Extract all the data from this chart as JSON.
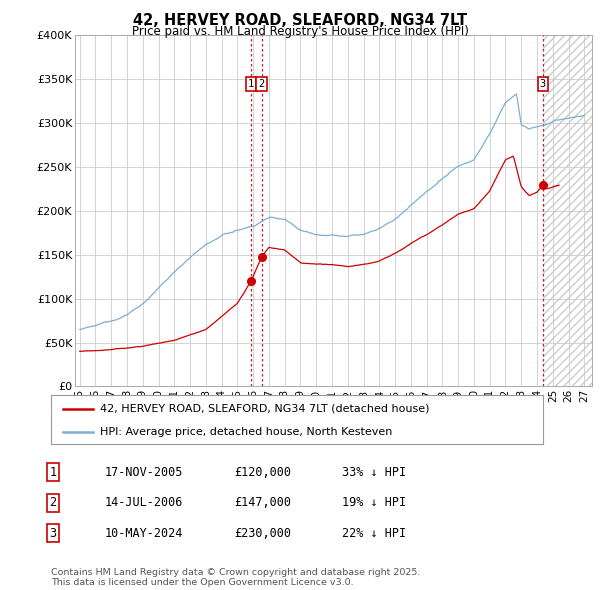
{
  "title": "42, HERVEY ROAD, SLEAFORD, NG34 7LT",
  "subtitle": "Price paid vs. HM Land Registry's House Price Index (HPI)",
  "background_color": "#ffffff",
  "plot_bg_color": "#ffffff",
  "grid_color": "#cccccc",
  "hpi_line_color": "#7bafd4",
  "price_line_color": "#cc0000",
  "dashed_line_color": "#cc0000",
  "ylim": [
    0,
    400000
  ],
  "yticks": [
    0,
    50000,
    100000,
    150000,
    200000,
    250000,
    300000,
    350000,
    400000
  ],
  "ytick_labels": [
    "£0",
    "£50K",
    "£100K",
    "£150K",
    "£200K",
    "£250K",
    "£300K",
    "£350K",
    "£400K"
  ],
  "xlim_start": 1994.7,
  "xlim_end": 2027.5,
  "xtick_years": [
    1995,
    1996,
    1997,
    1998,
    1999,
    2000,
    2001,
    2002,
    2003,
    2004,
    2005,
    2006,
    2007,
    2008,
    2009,
    2010,
    2011,
    2012,
    2013,
    2014,
    2015,
    2016,
    2017,
    2018,
    2019,
    2020,
    2021,
    2022,
    2023,
    2024,
    2025,
    2026,
    2027
  ],
  "sale1_x": 2005.88,
  "sale1_y": 120000,
  "sale1_label": "1",
  "sale2_x": 2006.54,
  "sale2_y": 147000,
  "sale2_label": "2",
  "sale3_x": 2024.37,
  "sale3_y": 230000,
  "sale3_label": "3",
  "legend_line1": "42, HERVEY ROAD, SLEAFORD, NG34 7LT (detached house)",
  "legend_line2": "HPI: Average price, detached house, North Kesteven",
  "table_rows": [
    [
      "1",
      "17-NOV-2005",
      "£120,000",
      "33% ↓ HPI"
    ],
    [
      "2",
      "14-JUL-2006",
      "£147,000",
      "19% ↓ HPI"
    ],
    [
      "3",
      "10-MAY-2024",
      "£230,000",
      "22% ↓ HPI"
    ]
  ],
  "footnote": "Contains HM Land Registry data © Crown copyright and database right 2025.\nThis data is licensed under the Open Government Licence v3.0.",
  "hpi_knots_x": [
    1995,
    1996,
    1997,
    1998,
    1999,
    2000,
    2001,
    2002,
    2003,
    2004,
    2005,
    2006,
    2007,
    2008,
    2009,
    2010,
    2011,
    2012,
    2013,
    2014,
    2015,
    2016,
    2017,
    2018,
    2019,
    2020,
    2021,
    2022,
    2022.7,
    2023,
    2023.5,
    2024,
    2024.5,
    2025,
    2025.5,
    2026,
    2027
  ],
  "hpi_knots_y": [
    65000,
    68000,
    74000,
    82000,
    95000,
    112000,
    130000,
    148000,
    162000,
    172000,
    178000,
    183000,
    193000,
    192000,
    180000,
    176000,
    176000,
    174000,
    176000,
    182000,
    193000,
    208000,
    222000,
    238000,
    252000,
    260000,
    290000,
    325000,
    335000,
    300000,
    295000,
    298000,
    300000,
    303000,
    305000,
    307000,
    310000
  ],
  "price_knots_x": [
    1995,
    1997,
    1999,
    2001,
    2003,
    2005,
    2005.88,
    2006.54,
    2007,
    2008,
    2009,
    2010,
    2011,
    2012,
    2013,
    2014,
    2015,
    2016,
    2017,
    2018,
    2019,
    2020,
    2021,
    2022,
    2022.5,
    2023,
    2023.5,
    2024,
    2024.37,
    2024.6,
    2025,
    2025.4
  ],
  "price_knots_y": [
    40000,
    42000,
    46000,
    53000,
    65000,
    95000,
    120000,
    147000,
    158000,
    155000,
    140000,
    138000,
    138000,
    136000,
    138000,
    142000,
    150000,
    162000,
    172000,
    184000,
    196000,
    202000,
    222000,
    258000,
    263000,
    228000,
    218000,
    222000,
    230000,
    226000,
    228000,
    230000
  ]
}
